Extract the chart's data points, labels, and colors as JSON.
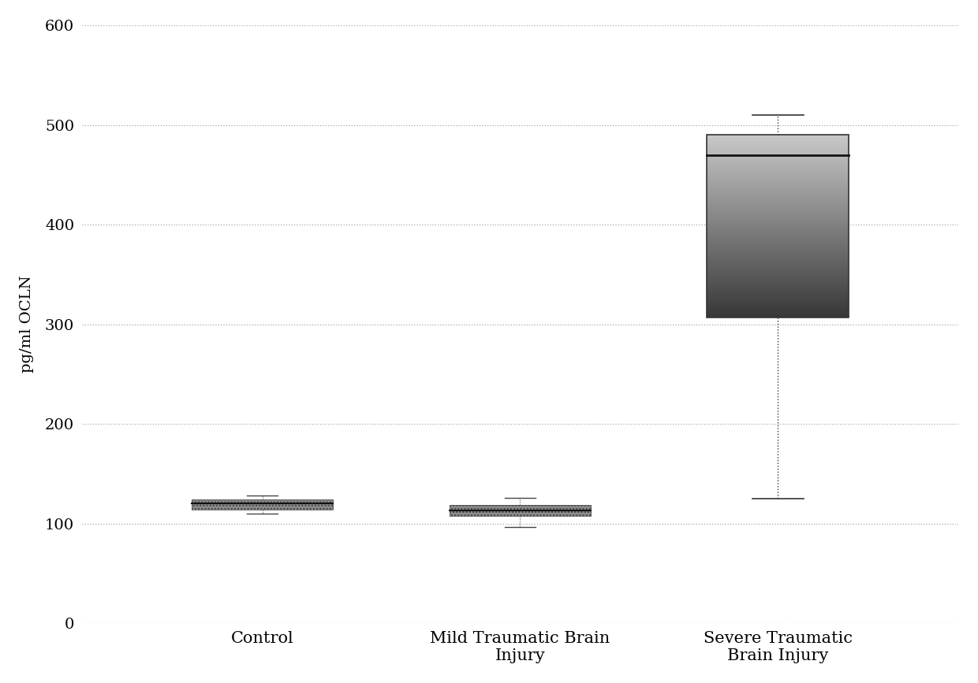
{
  "categories": [
    "Control",
    "Mild Traumatic Brain\nInjury",
    "Severe Traumatic\nBrain Injury"
  ],
  "boxes": [
    {
      "q1": 114,
      "median": 120,
      "q3": 124,
      "whisker_low": 110,
      "whisker_high": 128
    },
    {
      "q1": 108,
      "median": 113,
      "q3": 119,
      "whisker_low": 97,
      "whisker_high": 126
    },
    {
      "q1": 307,
      "median": 470,
      "q3": 490,
      "whisker_low": 125,
      "whisker_high": 510
    }
  ],
  "ylabel": "pg/ml OCLN",
  "ylim": [
    0,
    600
  ],
  "yticks": [
    0,
    100,
    200,
    300,
    400,
    500,
    600
  ],
  "background_color": "#ffffff",
  "xlabel_fontsize": 15,
  "ylabel_fontsize": 14,
  "tick_fontsize": 14
}
